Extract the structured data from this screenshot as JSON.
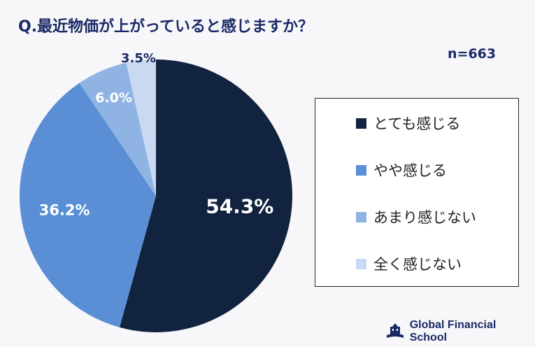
{
  "title": "Q.最近物価が上がっていると感じますか？",
  "sample": "n=663",
  "brand": "Global Financial School",
  "chart_data": {
    "type": "pie",
    "title": "Q.最近物価が上がっていると感じますか？",
    "categories": [
      "とても感じる",
      "やや感じる",
      "あまり感じない",
      "全く感じない"
    ],
    "values": [
      54.3,
      36.2,
      6.0,
      3.5
    ],
    "labels": [
      "54.3%",
      "36.2%",
      "6.0%",
      "3.5%"
    ],
    "colors": [
      "#12233f",
      "#5a8fd6",
      "#8fb3e3",
      "#c8d9f1"
    ],
    "legend_position": "right"
  }
}
